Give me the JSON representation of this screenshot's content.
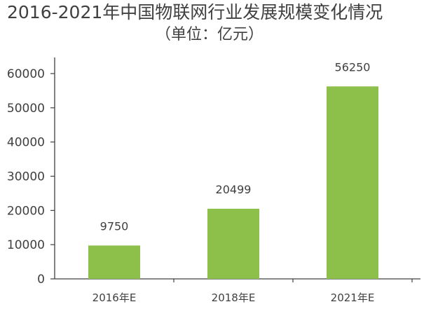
{
  "chart_data": {
    "type": "bar",
    "title": "2016-2021年中国物联网行业发展规模变化情况",
    "subtitle": "（单位：亿元）",
    "categories": [
      "2016年E",
      "2018年E",
      "2021年E"
    ],
    "values": [
      9750,
      20499,
      56250
    ],
    "data_labels": [
      "9750",
      "20499",
      "56250"
    ],
    "ylim": [
      0,
      60000
    ],
    "yticks": [
      0,
      10000,
      20000,
      30000,
      40000,
      50000,
      60000
    ],
    "ytick_labels": [
      "0",
      "10000",
      "20000",
      "30000",
      "40000",
      "50000",
      "60000"
    ],
    "xlabel": "",
    "ylabel": "",
    "grid": false,
    "legend": "none",
    "bar_color": "#8dc04a",
    "axis_color": "#404040"
  }
}
